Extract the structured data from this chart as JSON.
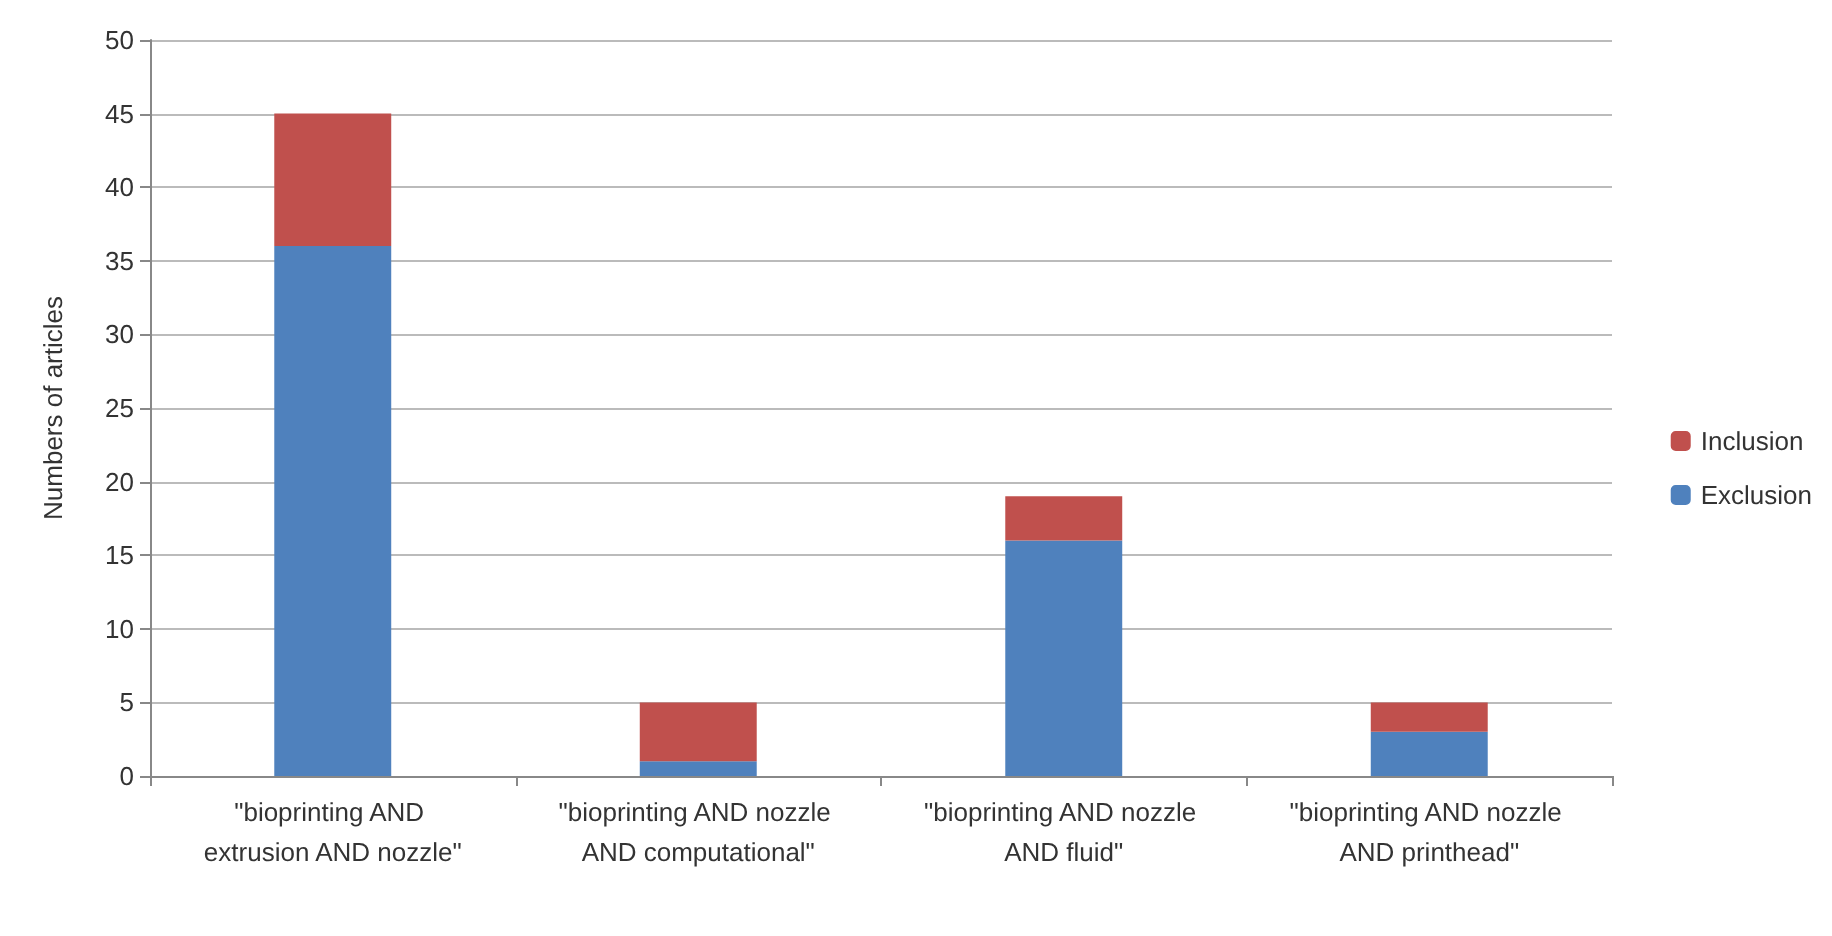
{
  "chart_data": {
    "type": "bar",
    "ylabel": "Numbers of articles",
    "categories": [
      "\"bioprinting AND extrusion AND nozzle\"",
      "\"bioprinting AND nozzle AND computational\"",
      "\"bioprinting AND nozzle AND fluid\"",
      "\"bioprinting AND nozzle AND printhead\""
    ],
    "series": [
      {
        "name": "Exclusion",
        "color": "#4f81bd",
        "values": [
          36,
          1,
          16,
          3
        ]
      },
      {
        "name": "Inclusion",
        "color": "#c0504d",
        "values": [
          9,
          4,
          3,
          2
        ]
      }
    ],
    "stacked": true,
    "ylim": [
      0,
      50
    ],
    "yticks": [
      0,
      5,
      10,
      15,
      20,
      25,
      30,
      35,
      40,
      45,
      50
    ],
    "grid": "y",
    "legend": "right"
  }
}
